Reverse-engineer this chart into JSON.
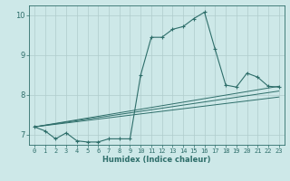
{
  "xlabel": "Humidex (Indice chaleur)",
  "bg_color": "#cde8e8",
  "grid_color": "#b0cccc",
  "line_color": "#2e6e6a",
  "xlim": [
    -0.5,
    23.5
  ],
  "ylim": [
    6.75,
    10.25
  ],
  "yticks": [
    7,
    8,
    9,
    10
  ],
  "xticks": [
    0,
    1,
    2,
    3,
    4,
    5,
    6,
    7,
    8,
    9,
    10,
    11,
    12,
    13,
    14,
    15,
    16,
    17,
    18,
    19,
    20,
    21,
    22,
    23
  ],
  "main_line": {
    "x": [
      0,
      1,
      2,
      3,
      4,
      5,
      6,
      7,
      8,
      9,
      10,
      11,
      12,
      13,
      14,
      15,
      16,
      17,
      18,
      19,
      20,
      21,
      22,
      23
    ],
    "y": [
      7.2,
      7.1,
      6.9,
      7.05,
      6.85,
      6.82,
      6.82,
      6.9,
      6.9,
      6.9,
      8.5,
      9.45,
      9.45,
      9.65,
      9.72,
      9.92,
      10.08,
      9.15,
      8.25,
      8.2,
      8.55,
      8.45,
      8.22,
      8.2
    ]
  },
  "trend_lines": [
    {
      "x": [
        0,
        23
      ],
      "y": [
        7.2,
        8.22
      ]
    },
    {
      "x": [
        0,
        23
      ],
      "y": [
        7.2,
        8.1
      ]
    },
    {
      "x": [
        0,
        23
      ],
      "y": [
        7.2,
        7.95
      ]
    }
  ]
}
